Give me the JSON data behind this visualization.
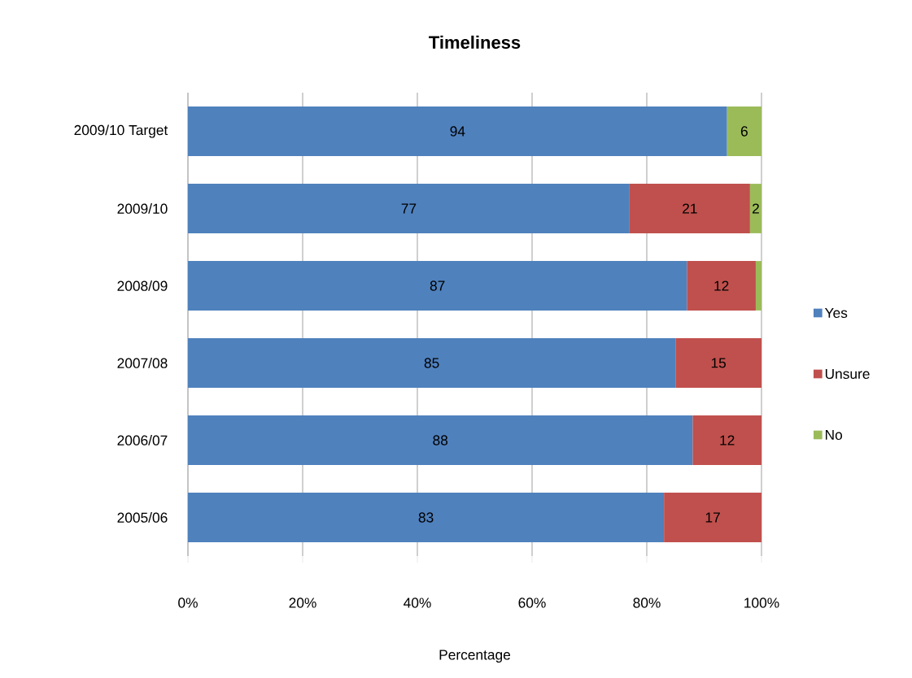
{
  "chart_data": {
    "type": "bar",
    "orientation": "horizontal",
    "stacked": true,
    "title": "Timeliness",
    "xlabel": "Percentage",
    "categories": [
      "2009/10 Target",
      "2009/10",
      "2008/09",
      "2007/08",
      "2006/07",
      "2005/06"
    ],
    "series": [
      {
        "name": "Yes",
        "color": "#4f81bd",
        "values": [
          94,
          77,
          87,
          85,
          88,
          83
        ],
        "value_labels": [
          "94",
          "77",
          "87",
          "85",
          "88",
          "83"
        ]
      },
      {
        "name": "Unsure",
        "color": "#c0504d",
        "values": [
          null,
          21,
          12,
          15,
          12,
          17
        ],
        "value_labels": [
          null,
          "21",
          "12",
          "15",
          "12",
          "17"
        ]
      },
      {
        "name": "No",
        "color": "#9bbb59",
        "values": [
          6,
          2,
          1,
          null,
          null,
          null
        ],
        "value_labels": [
          "6",
          "2",
          null,
          null,
          null,
          null
        ]
      }
    ],
    "xlim": [
      0,
      100
    ],
    "xticks": [
      {
        "value": 0,
        "label": "0%"
      },
      {
        "value": 20,
        "label": "20%"
      },
      {
        "value": 40,
        "label": "40%"
      },
      {
        "value": 60,
        "label": "60%"
      },
      {
        "value": 80,
        "label": "80%"
      },
      {
        "value": 100,
        "label": "100%"
      }
    ],
    "grid": "x",
    "legend": "right"
  }
}
